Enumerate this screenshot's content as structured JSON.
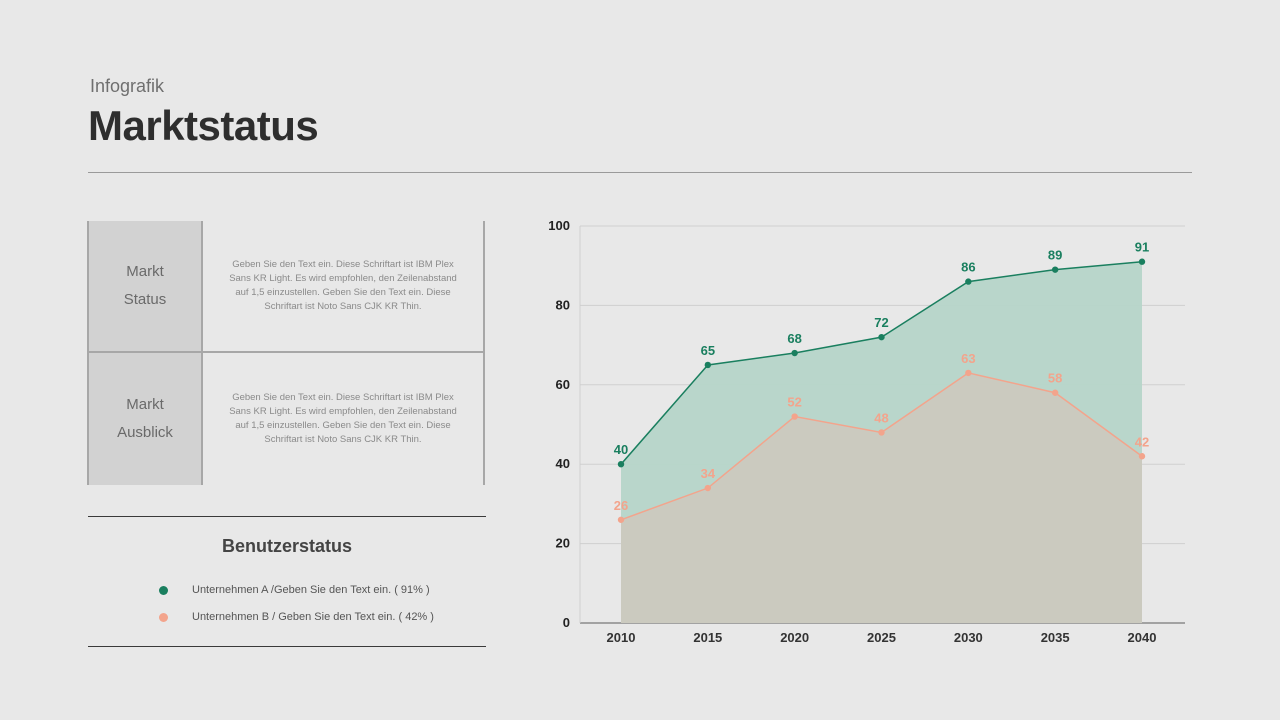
{
  "header": {
    "subtitle": "Infografik",
    "title": "Marktstatus"
  },
  "info_table": {
    "rows": [
      {
        "label_line1": "Markt",
        "label_line2": "Status",
        "text": "Geben Sie den Text ein. Diese Schriftart ist IBM Plex Sans KR Light. Es wird empfohlen, den Zeilenabstand auf 1,5 einzustellen. Geben Sie den Text ein. Diese Schriftart ist Noto Sans CJK KR Thin."
      },
      {
        "label_line1": "Markt",
        "label_line2": "Ausblick",
        "text": "Geben Sie den Text ein. Diese Schriftart ist IBM Plex Sans KR Light. Es wird empfohlen, den Zeilenabstand auf 1,5 einzustellen. Geben Sie den Text ein. Diese Schriftart ist Noto Sans CJK KR Thin."
      }
    ]
  },
  "legend": {
    "title": "Benutzerstatus",
    "items": [
      {
        "text": "Unternehmen A /Geben Sie den Text ein. ( 91% )",
        "color": "#1a7f5f"
      },
      {
        "text": "Unternehmen B / Geben Sie den Text ein. ( 42% )",
        "color": "#f3a48c"
      }
    ]
  },
  "chart_data": {
    "type": "area",
    "x": [
      "2010",
      "2015",
      "2020",
      "2025",
      "2030",
      "2035",
      "2040"
    ],
    "series": [
      {
        "values": [
          40,
          65,
          68,
          72,
          86,
          89,
          91
        ],
        "color": "#1a7f5f",
        "fill": "#b6d5c9"
      },
      {
        "values": [
          26,
          34,
          52,
          48,
          63,
          58,
          42
        ],
        "color": "#f3a48c",
        "fill": "#cdc9be"
      }
    ],
    "ylim": [
      0,
      100
    ],
    "yticks": [
      0,
      20,
      40,
      60,
      80,
      100
    ],
    "grid": true,
    "data_labels": true
  }
}
